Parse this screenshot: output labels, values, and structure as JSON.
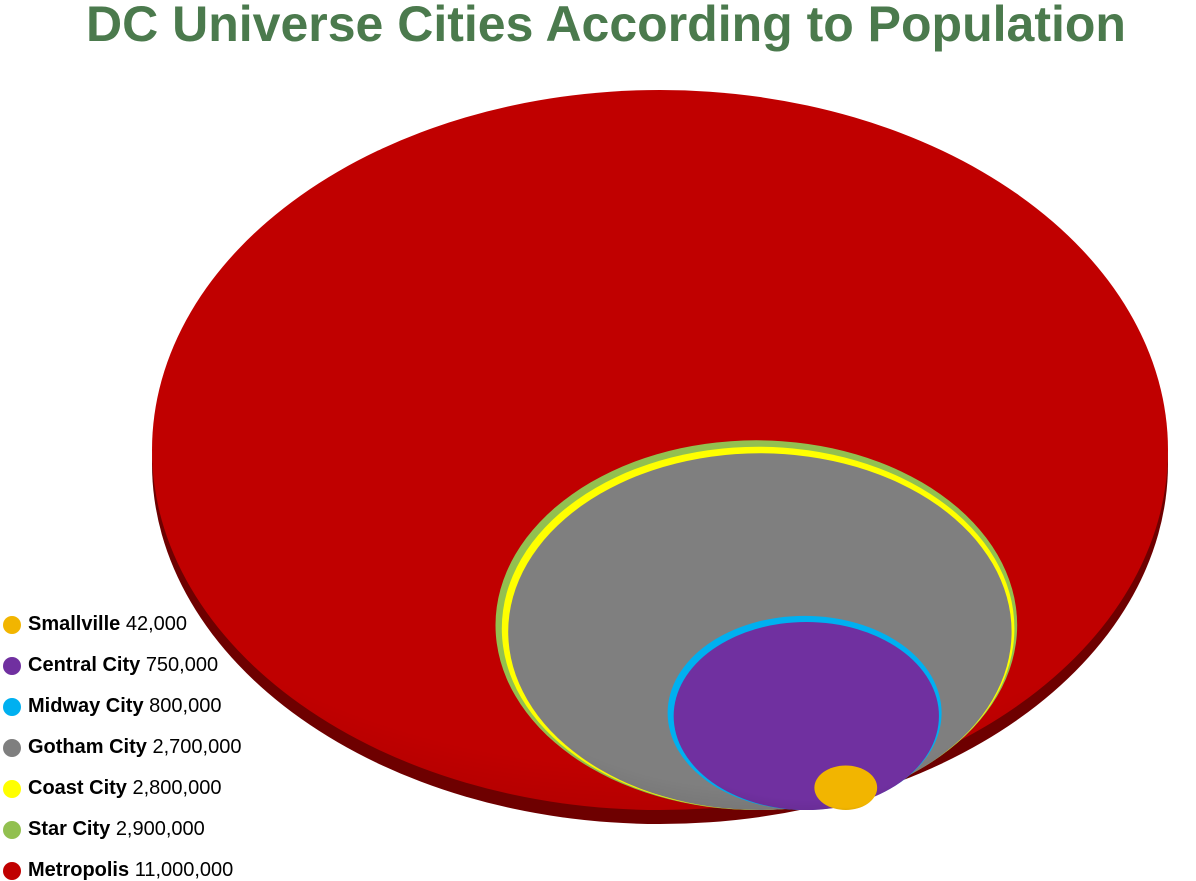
{
  "chart_data": {
    "type": "nested",
    "title": "DC Universe Cities According to Population",
    "categories": [
      "Smallville",
      "Central City",
      "Midway City",
      "Gotham City",
      "Coast City",
      "Star City",
      "Metropolis"
    ],
    "values": [
      42000,
      750000,
      800000,
      2700000,
      2800000,
      2900000,
      11000000
    ],
    "value_labels": [
      "42,000",
      "750,000",
      "800,000",
      "2,700,000",
      "2,800,000",
      "2,900,000",
      "11,000,000"
    ],
    "colors": [
      "#f2b500",
      "#7030a0",
      "#00b0f0",
      "#7f7f7f",
      "#ffff00",
      "#92c050",
      "#c00000"
    ]
  }
}
